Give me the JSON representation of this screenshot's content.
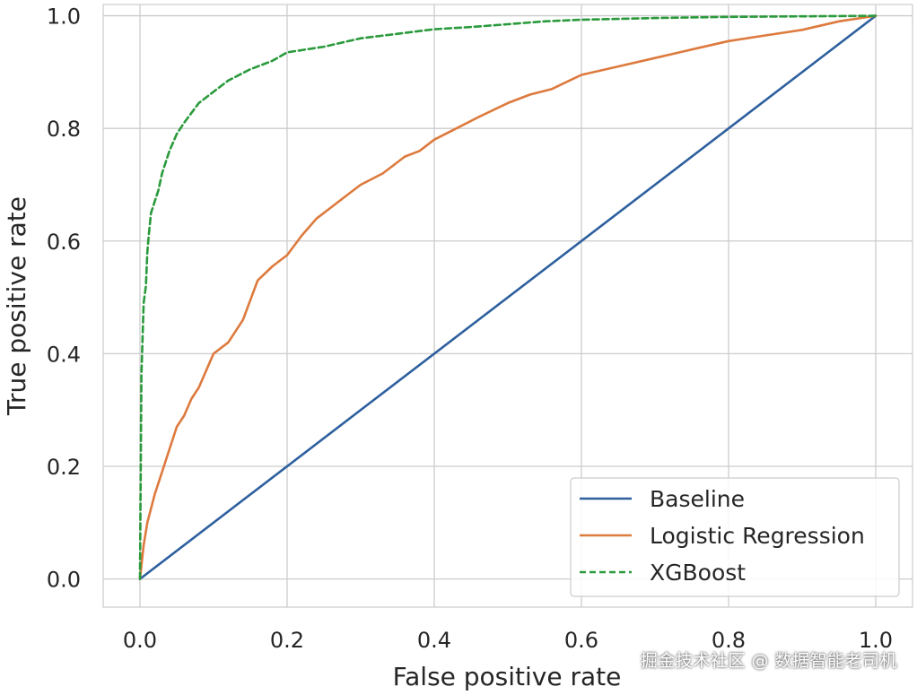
{
  "chart_data": {
    "type": "line",
    "xlabel": "False positive rate",
    "ylabel": "True positive rate",
    "xlim": [
      -0.05,
      1.05
    ],
    "ylim": [
      -0.05,
      1.02
    ],
    "xticks": [
      "0.0",
      "0.2",
      "0.4",
      "0.6",
      "0.8",
      "1.0"
    ],
    "yticks": [
      "0.0",
      "0.2",
      "0.4",
      "0.6",
      "0.8",
      "1.0"
    ],
    "grid": true,
    "legend_position": "lower-right",
    "series": [
      {
        "name": "Baseline",
        "color": "#2d5f9e",
        "dash": "solid",
        "x": [
          0,
          1
        ],
        "y": [
          0,
          1
        ]
      },
      {
        "name": "Logistic Regression",
        "color": "#dd7a3e",
        "dash": "solid",
        "x": [
          0,
          0.005,
          0.01,
          0.02,
          0.03,
          0.04,
          0.05,
          0.06,
          0.07,
          0.08,
          0.09,
          0.1,
          0.12,
          0.14,
          0.16,
          0.18,
          0.2,
          0.22,
          0.24,
          0.26,
          0.28,
          0.3,
          0.33,
          0.36,
          0.38,
          0.4,
          0.43,
          0.46,
          0.5,
          0.53,
          0.56,
          0.6,
          0.65,
          0.7,
          0.75,
          0.8,
          0.85,
          0.9,
          0.95,
          1.0
        ],
        "y": [
          0,
          0.06,
          0.1,
          0.15,
          0.19,
          0.23,
          0.27,
          0.29,
          0.32,
          0.34,
          0.37,
          0.4,
          0.42,
          0.46,
          0.53,
          0.555,
          0.575,
          0.61,
          0.64,
          0.66,
          0.68,
          0.7,
          0.72,
          0.75,
          0.76,
          0.78,
          0.8,
          0.82,
          0.845,
          0.86,
          0.87,
          0.895,
          0.91,
          0.925,
          0.94,
          0.955,
          0.965,
          0.975,
          0.99,
          1.0
        ]
      },
      {
        "name": "XGBoost",
        "color": "#2a9a3c",
        "dash": "dashed",
        "x": [
          0,
          0.002,
          0.005,
          0.008,
          0.01,
          0.012,
          0.015,
          0.02,
          0.025,
          0.03,
          0.04,
          0.05,
          0.06,
          0.08,
          0.1,
          0.12,
          0.15,
          0.18,
          0.2,
          0.25,
          0.3,
          0.35,
          0.4,
          0.45,
          0.5,
          0.55,
          0.6,
          0.7,
          0.8,
          0.9,
          1.0
        ],
        "y": [
          0,
          0.36,
          0.49,
          0.52,
          0.58,
          0.61,
          0.65,
          0.67,
          0.69,
          0.72,
          0.76,
          0.79,
          0.81,
          0.845,
          0.865,
          0.885,
          0.905,
          0.92,
          0.935,
          0.945,
          0.96,
          0.968,
          0.976,
          0.98,
          0.985,
          0.99,
          0.993,
          0.996,
          0.998,
          0.999,
          1.0
        ]
      }
    ]
  },
  "watermark": "掘金技术社区 @ 数据智能老司机"
}
